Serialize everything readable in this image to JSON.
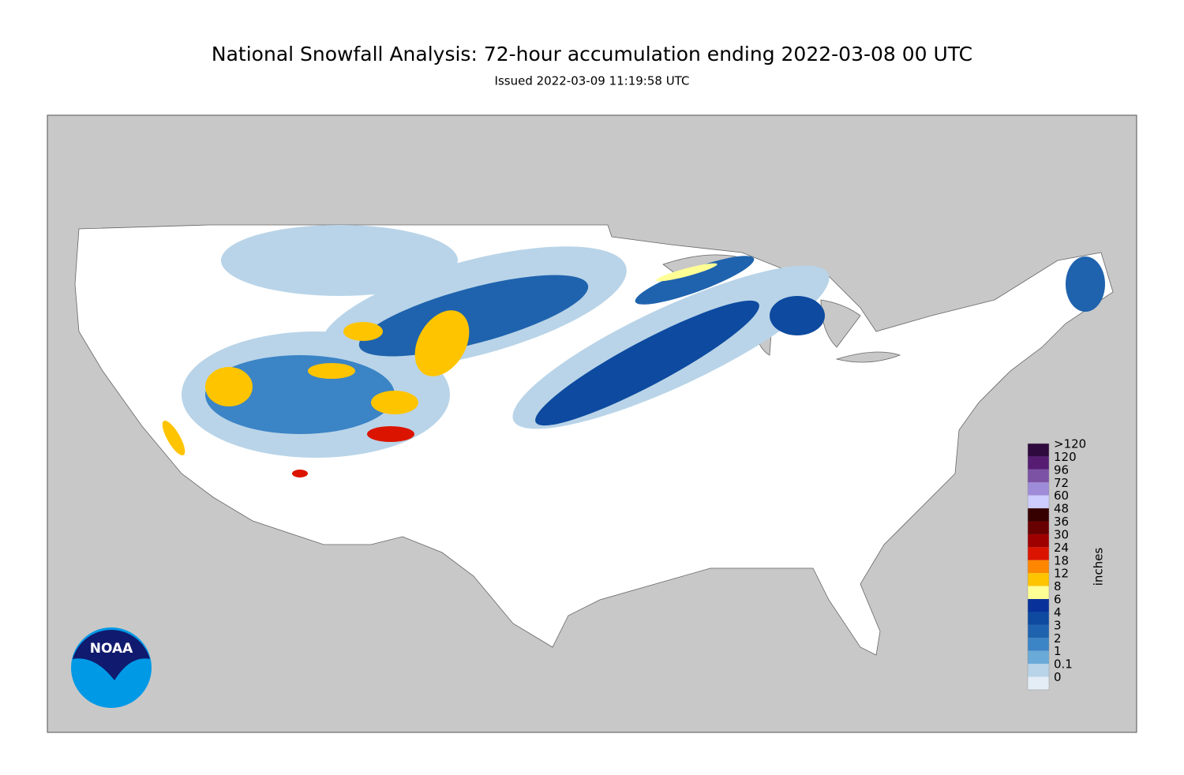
{
  "header": {
    "title": "National Snowfall Analysis: 72-hour accumulation ending 2022-03-08 00 UTC",
    "subtitle": "Issued 2022-03-09 11:19:58 UTC"
  },
  "legend": {
    "unit": "inches",
    "items": [
      {
        "label": ">120",
        "color": "#2e0a3e"
      },
      {
        "label": "120",
        "color": "#561c72"
      },
      {
        "label": "96",
        "color": "#7c52a5"
      },
      {
        "label": "72",
        "color": "#9f8cd8"
      },
      {
        "label": "60",
        "color": "#ccccff"
      },
      {
        "label": "48",
        "color": "#360000"
      },
      {
        "label": "36",
        "color": "#690000"
      },
      {
        "label": "30",
        "color": "#9e0000"
      },
      {
        "label": "24",
        "color": "#db1400"
      },
      {
        "label": "18",
        "color": "#ff8700"
      },
      {
        "label": "12",
        "color": "#ffc400"
      },
      {
        "label": "8",
        "color": "#ffff96"
      },
      {
        "label": "6",
        "color": "#08319a"
      },
      {
        "label": "4",
        "color": "#0d4aa0"
      },
      {
        "label": "3",
        "color": "#1f63ae"
      },
      {
        "label": "2",
        "color": "#3b84c6"
      },
      {
        "label": "1",
        "color": "#6aaad8"
      },
      {
        "label": "0.1",
        "color": "#b9d4e8"
      },
      {
        "label": "0",
        "color": "#e4edf6"
      }
    ]
  },
  "logo": {
    "text": "NOAA"
  }
}
